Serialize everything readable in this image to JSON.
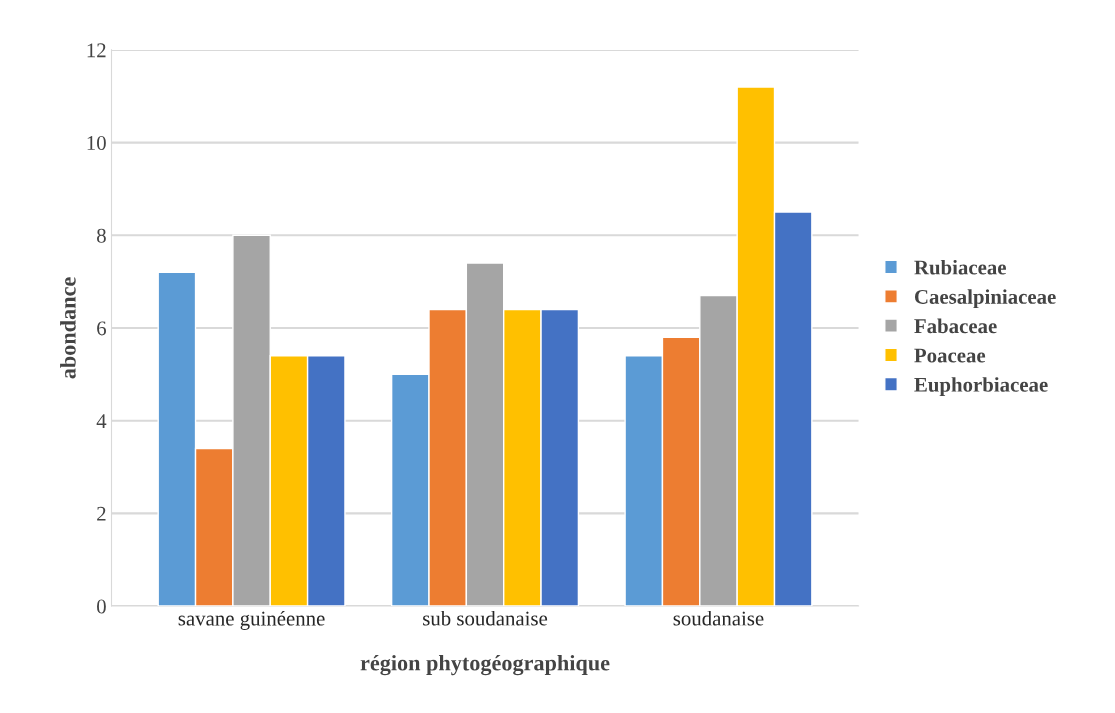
{
  "chart_data": {
    "type": "bar",
    "xlabel": "région phytogéographique",
    "ylabel": "abondance",
    "categories": [
      "savane guinéenne",
      "sub soudanaise",
      "soudanaise"
    ],
    "series": [
      {
        "name": "Rubiaceae",
        "color": "#5b9bd5",
        "values": [
          7.2,
          5.0,
          5.4
        ]
      },
      {
        "name": "Caesalpiniaceae",
        "color": "#ed7d31",
        "values": [
          3.4,
          6.4,
          5.8
        ]
      },
      {
        "name": "Fabaceae",
        "color": "#a5a5a5",
        "values": [
          8.0,
          7.4,
          6.7
        ]
      },
      {
        "name": "Poaceae",
        "color": "#ffc000",
        "values": [
          5.4,
          6.4,
          11.2
        ]
      },
      {
        "name": "Euphorbiaceae",
        "color": "#4472c4",
        "values": [
          5.4,
          6.4,
          8.5
        ]
      }
    ],
    "ylim": [
      0,
      12
    ],
    "yticks": [
      0,
      2,
      4,
      6,
      8,
      10,
      12
    ],
    "grid": "y",
    "legend": "right"
  }
}
